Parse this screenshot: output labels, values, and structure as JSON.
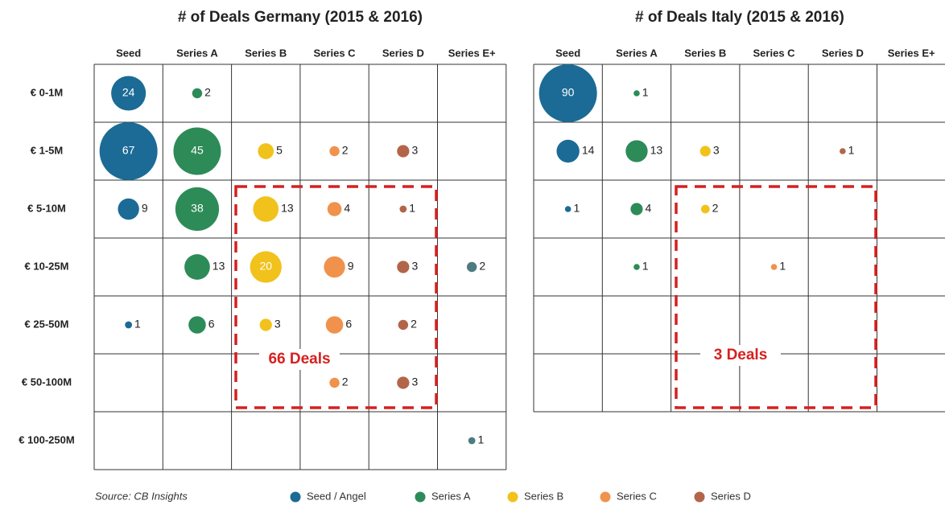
{
  "source": "Source: CB Insights",
  "legend": [
    {
      "name": "Seed / Angel",
      "color": "#1b6b96"
    },
    {
      "name": "Series A",
      "color": "#2d8b58"
    },
    {
      "name": "Series B",
      "color": "#f1c21c"
    },
    {
      "name": "Series C",
      "color": "#f0924b"
    },
    {
      "name": "Series D",
      "color": "#b3654a"
    }
  ],
  "chart_data": [
    {
      "type": "bubble-grid",
      "title": "# of Deals Germany (2015 & 2016)",
      "rows": [
        "€ 0-1M",
        "€ 1-5M",
        "€ 5-10M",
        "€ 10-25M",
        "€ 25-50M",
        "€ 50-100M",
        "€ 100-250M"
      ],
      "annotation": "66 Deals",
      "series": [
        {
          "name": "Seed",
          "color": "#1b6b96",
          "values": [
            24,
            67,
            9,
            null,
            1,
            null,
            null
          ]
        },
        {
          "name": "Series A",
          "color": "#2d8b58",
          "values": [
            2,
            45,
            38,
            13,
            6,
            null,
            null
          ]
        },
        {
          "name": "Series B",
          "color": "#f1c21c",
          "values": [
            null,
            5,
            13,
            20,
            3,
            null,
            null
          ]
        },
        {
          "name": "Series C",
          "color": "#f0924b",
          "values": [
            null,
            2,
            4,
            9,
            6,
            2,
            null
          ]
        },
        {
          "name": "Series D",
          "color": "#b3654a",
          "values": [
            null,
            3,
            1,
            3,
            2,
            3,
            null
          ]
        },
        {
          "name": "Series E+",
          "color": "#4d7b80",
          "values": [
            null,
            null,
            null,
            2,
            null,
            null,
            1
          ]
        }
      ]
    },
    {
      "type": "bubble-grid",
      "title": "# of Deals Italy (2015 & 2016)",
      "annotation": "3 Deals",
      "series": [
        {
          "name": "Seed",
          "color": "#1b6b96",
          "values": [
            90,
            14,
            1,
            null,
            null,
            null
          ]
        },
        {
          "name": "Series A",
          "color": "#2d8b58",
          "values": [
            1,
            13,
            4,
            1,
            null,
            null
          ]
        },
        {
          "name": "Series B",
          "color": "#f1c21c",
          "values": [
            null,
            3,
            2,
            null,
            null,
            null
          ]
        },
        {
          "name": "Series C",
          "color": "#f0924b",
          "values": [
            null,
            null,
            null,
            1,
            null,
            null
          ]
        },
        {
          "name": "Series D",
          "color": "#b3654a",
          "values": [
            null,
            1,
            null,
            null,
            null,
            null
          ]
        },
        {
          "name": "Series E+",
          "color": "#4d7b80",
          "values": [
            null,
            null,
            null,
            null,
            null,
            null
          ]
        }
      ]
    }
  ]
}
